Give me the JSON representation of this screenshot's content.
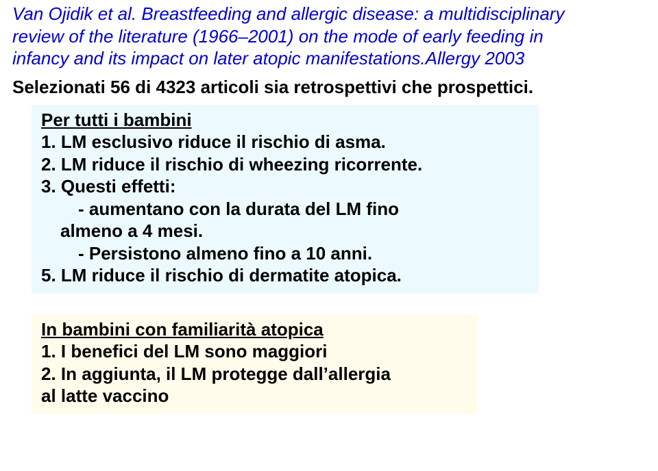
{
  "citation": {
    "authors": "Van Ojidik et al.",
    "title_line1": "Breastfeeding and allergic disease: a multidisciplinary",
    "title_line2": "review of the literature (1966–2001) on the mode of early feeding in",
    "title_line3": "infancy and its impact on later atopic manifestations.",
    "journal": "Allergy 2003"
  },
  "selection_line": "Selezionati 56 di 4323 articoli sia retrospettivi che prospettici.",
  "box1": {
    "heading": "Per tutti i bambini",
    "item1": "1. LM esclusivo riduce il rischio di asma.",
    "item2": "2. LM riduce il rischio di wheezing ricorrente.",
    "item3": "3. Questi effetti:",
    "item3a": "- aumentano con la durata del LM fino",
    "item3a2": "almeno a 4 mesi.",
    "item3b": "- Persistono almeno fino a 10 anni.",
    "item5": "5. LM riduce il rischio di dermatite atopica."
  },
  "box2": {
    "heading": "In bambini con familiarità atopica",
    "item1": "1. I benefici del LM sono maggiori",
    "item2a": "2. In aggiunta, il LM protegge dall’allergia",
    "item2b": "al latte vaccino"
  },
  "style": {
    "citation_color": "#0000d0",
    "box1_bg": "#ecfaff",
    "box2_bg": "#fffcec",
    "text_color": "#000000",
    "page_bg": "#ffffff",
    "font_family": "Comic Sans MS",
    "citation_fontsize_pt": 20,
    "body_fontsize_pt": 20
  }
}
